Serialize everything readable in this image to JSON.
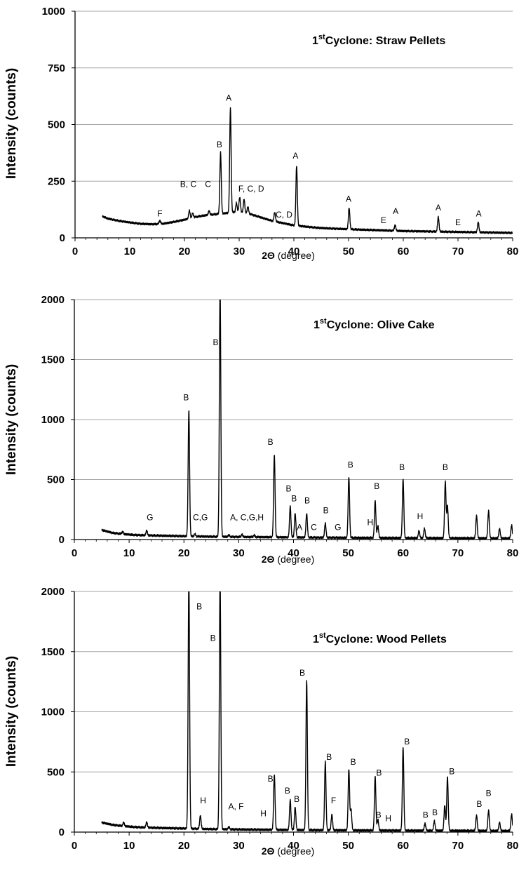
{
  "chart_data": [
    {
      "type": "line",
      "title_main": "Cyclone: Straw Pellets",
      "title_prefix": "1",
      "title_sup": "st",
      "xlabel_sym": "2Θ",
      "xlabel_unit": " (degree)",
      "ylabel": "Intensity (counts)",
      "xlim": [
        0,
        80
      ],
      "ylim": [
        0,
        1000
      ],
      "xticks": [
        "0",
        "10",
        "20",
        "30",
        "40",
        "50",
        "60",
        "70",
        "80"
      ],
      "yticks": [
        "0",
        "250",
        "500",
        "750",
        "1000"
      ],
      "grid": true,
      "baseline": [
        [
          5,
          95
        ],
        [
          6,
          85
        ],
        [
          8,
          75
        ],
        [
          10,
          68
        ],
        [
          12,
          62
        ],
        [
          14,
          60
        ],
        [
          16,
          62
        ],
        [
          18,
          70
        ],
        [
          20,
          80
        ],
        [
          22,
          92
        ],
        [
          24,
          100
        ],
        [
          26,
          105
        ],
        [
          28,
          110
        ],
        [
          30,
          115
        ],
        [
          32,
          105
        ],
        [
          34,
          90
        ],
        [
          36,
          75
        ],
        [
          38,
          65
        ],
        [
          40,
          55
        ],
        [
          42,
          50
        ],
        [
          44,
          45
        ],
        [
          46,
          42
        ],
        [
          50,
          38
        ],
        [
          55,
          34
        ],
        [
          60,
          30
        ],
        [
          65,
          28
        ],
        [
          70,
          26
        ],
        [
          75,
          24
        ],
        [
          80,
          22
        ]
      ],
      "peaks": [
        [
          15.5,
          15
        ],
        [
          20.9,
          35
        ],
        [
          21.5,
          20
        ],
        [
          24.5,
          18
        ],
        [
          26.6,
          270
        ],
        [
          28.4,
          465
        ],
        [
          29.5,
          40
        ],
        [
          30.1,
          65
        ],
        [
          30.9,
          60
        ],
        [
          31.6,
          30
        ],
        [
          36.5,
          40
        ],
        [
          40.5,
          265
        ],
        [
          50.1,
          95
        ],
        [
          58.5,
          25
        ],
        [
          66.4,
          65
        ],
        [
          73.7,
          45
        ]
      ],
      "annotations": [
        {
          "text": "F",
          "x": 15.5,
          "y": 95
        },
        {
          "text": "B, C",
          "x": 20.7,
          "y": 225
        },
        {
          "text": "C",
          "x": 24.3,
          "y": 225
        },
        {
          "text": "B",
          "x": 26.4,
          "y": 400
        },
        {
          "text": "A",
          "x": 28.1,
          "y": 605
        },
        {
          "text": "F, C, D",
          "x": 32.2,
          "y": 205
        },
        {
          "text": "C, D",
          "x": 38.2,
          "y": 90
        },
        {
          "text": "A",
          "x": 40.3,
          "y": 350
        },
        {
          "text": "A",
          "x": 50.0,
          "y": 160
        },
        {
          "text": "E",
          "x": 56.4,
          "y": 65
        },
        {
          "text": "A",
          "x": 58.6,
          "y": 105
        },
        {
          "text": "A",
          "x": 66.4,
          "y": 120
        },
        {
          "text": "E",
          "x": 70.0,
          "y": 55
        },
        {
          "text": "A",
          "x": 73.8,
          "y": 95
        }
      ]
    },
    {
      "type": "line",
      "title_main": "Cyclone: Olive Cake",
      "title_prefix": "1",
      "title_sup": "st",
      "xlabel_sym": "2Θ",
      "xlabel_unit": " (degree)",
      "ylabel": "Intensity (counts)",
      "xlim": [
        0,
        80
      ],
      "ylim": [
        0,
        2000
      ],
      "xticks": [
        "0",
        "10",
        "20",
        "30",
        "40",
        "50",
        "60",
        "70",
        "80"
      ],
      "yticks": [
        "0",
        "500",
        "1000",
        "1500",
        "2000"
      ],
      "grid": true,
      "baseline": [
        [
          5,
          80
        ],
        [
          7,
          55
        ],
        [
          9,
          45
        ],
        [
          11,
          38
        ],
        [
          13,
          35
        ],
        [
          16,
          32
        ],
        [
          20,
          28
        ],
        [
          25,
          24
        ],
        [
          30,
          22
        ],
        [
          35,
          20
        ],
        [
          40,
          18
        ],
        [
          50,
          15
        ],
        [
          60,
          13
        ],
        [
          70,
          12
        ],
        [
          80,
          10
        ]
      ],
      "peaks": [
        [
          8.8,
          20
        ],
        [
          13.2,
          40
        ],
        [
          20.9,
          1050
        ],
        [
          22.0,
          20
        ],
        [
          26.6,
          2100
        ],
        [
          28.2,
          15
        ],
        [
          30.6,
          20
        ],
        [
          32.8,
          15
        ],
        [
          36.5,
          690
        ],
        [
          39.4,
          260
        ],
        [
          40.3,
          200
        ],
        [
          42.4,
          200
        ],
        [
          45.8,
          120
        ],
        [
          50.1,
          510
        ],
        [
          54.9,
          310
        ],
        [
          55.4,
          100
        ],
        [
          60.0,
          490
        ],
        [
          62.9,
          60
        ],
        [
          63.9,
          80
        ],
        [
          67.7,
          470
        ],
        [
          68.1,
          270
        ],
        [
          73.4,
          190
        ],
        [
          75.6,
          230
        ],
        [
          77.6,
          80
        ],
        [
          79.8,
          110
        ]
      ],
      "annotations": [
        {
          "text": "G",
          "x": 13.8,
          "y": 160
        },
        {
          "text": "B",
          "x": 20.4,
          "y": 1160
        },
        {
          "text": "C,G",
          "x": 23.0,
          "y": 160
        },
        {
          "text": "B",
          "x": 25.8,
          "y": 1620
        },
        {
          "text": "A, C,G,H",
          "x": 31.5,
          "y": 160
        },
        {
          "text": "B",
          "x": 35.8,
          "y": 790
        },
        {
          "text": "B",
          "x": 39.1,
          "y": 400
        },
        {
          "text": "B",
          "x": 40.1,
          "y": 320
        },
        {
          "text": "A",
          "x": 41.1,
          "y": 80
        },
        {
          "text": "B",
          "x": 42.5,
          "y": 300
        },
        {
          "text": "C",
          "x": 43.7,
          "y": 80
        },
        {
          "text": "B",
          "x": 45.9,
          "y": 220
        },
        {
          "text": "G",
          "x": 48.1,
          "y": 80
        },
        {
          "text": "B",
          "x": 50.4,
          "y": 600
        },
        {
          "text": "H",
          "x": 54.0,
          "y": 120
        },
        {
          "text": "B",
          "x": 55.2,
          "y": 420
        },
        {
          "text": "B",
          "x": 59.8,
          "y": 580
        },
        {
          "text": "H",
          "x": 63.1,
          "y": 170
        },
        {
          "text": "B",
          "x": 67.7,
          "y": 580
        }
      ]
    },
    {
      "type": "line",
      "title_main": "Cyclone: Wood Pellets",
      "title_prefix": "1",
      "title_sup": "st",
      "xlabel_sym": "2Θ",
      "xlabel_unit": " (degree)",
      "ylabel": "Intensity (counts)",
      "xlim": [
        0,
        80
      ],
      "ylim": [
        0,
        2000
      ],
      "xticks": [
        "0",
        "10",
        "20",
        "30",
        "40",
        "50",
        "60",
        "70",
        "80"
      ],
      "yticks": [
        "0",
        "500",
        "1000",
        "1500",
        "2000"
      ],
      "grid": true,
      "baseline": [
        [
          5,
          80
        ],
        [
          7,
          60
        ],
        [
          9,
          50
        ],
        [
          11,
          42
        ],
        [
          13,
          38
        ],
        [
          16,
          34
        ],
        [
          20,
          30
        ],
        [
          25,
          25
        ],
        [
          30,
          22
        ],
        [
          35,
          20
        ],
        [
          40,
          18
        ],
        [
          50,
          15
        ],
        [
          60,
          13
        ],
        [
          70,
          12
        ],
        [
          80,
          10
        ]
      ],
      "peaks": [
        [
          9.0,
          30
        ],
        [
          13.2,
          45
        ],
        [
          20.9,
          2100
        ],
        [
          23.0,
          110
        ],
        [
          26.6,
          2100
        ],
        [
          28.2,
          20
        ],
        [
          36.5,
          460
        ],
        [
          39.4,
          250
        ],
        [
          40.3,
          190
        ],
        [
          42.4,
          1250
        ],
        [
          45.8,
          570
        ],
        [
          47.0,
          130
        ],
        [
          50.1,
          510
        ],
        [
          50.5,
          170
        ],
        [
          54.9,
          450
        ],
        [
          55.4,
          90
        ],
        [
          60.0,
          690
        ],
        [
          64.0,
          60
        ],
        [
          65.7,
          80
        ],
        [
          67.6,
          210
        ],
        [
          68.1,
          450
        ],
        [
          73.4,
          130
        ],
        [
          75.6,
          170
        ],
        [
          77.6,
          70
        ],
        [
          79.8,
          140
        ]
      ],
      "annotations": [
        {
          "text": "B",
          "x": 22.8,
          "y": 1850
        },
        {
          "text": "H",
          "x": 23.5,
          "y": 240
        },
        {
          "text": "B",
          "x": 25.3,
          "y": 1590
        },
        {
          "text": "A, F",
          "x": 29.5,
          "y": 190
        },
        {
          "text": "H",
          "x": 34.5,
          "y": 130
        },
        {
          "text": "B",
          "x": 35.8,
          "y": 420
        },
        {
          "text": "B",
          "x": 38.9,
          "y": 320
        },
        {
          "text": "B",
          "x": 40.6,
          "y": 250
        },
        {
          "text": "B",
          "x": 41.6,
          "y": 1300
        },
        {
          "text": "B",
          "x": 46.5,
          "y": 600
        },
        {
          "text": "F",
          "x": 47.3,
          "y": 240
        },
        {
          "text": "B",
          "x": 50.9,
          "y": 560
        },
        {
          "text": "B",
          "x": 55.6,
          "y": 470
        },
        {
          "text": "B",
          "x": 55.5,
          "y": 120
        },
        {
          "text": "H",
          "x": 57.3,
          "y": 90
        },
        {
          "text": "B",
          "x": 60.7,
          "y": 730
        },
        {
          "text": "B",
          "x": 64.1,
          "y": 120
        },
        {
          "text": "B",
          "x": 65.8,
          "y": 140
        },
        {
          "text": "B",
          "x": 68.9,
          "y": 480
        },
        {
          "text": "B",
          "x": 73.9,
          "y": 210
        },
        {
          "text": "B",
          "x": 75.6,
          "y": 300
        }
      ]
    }
  ]
}
